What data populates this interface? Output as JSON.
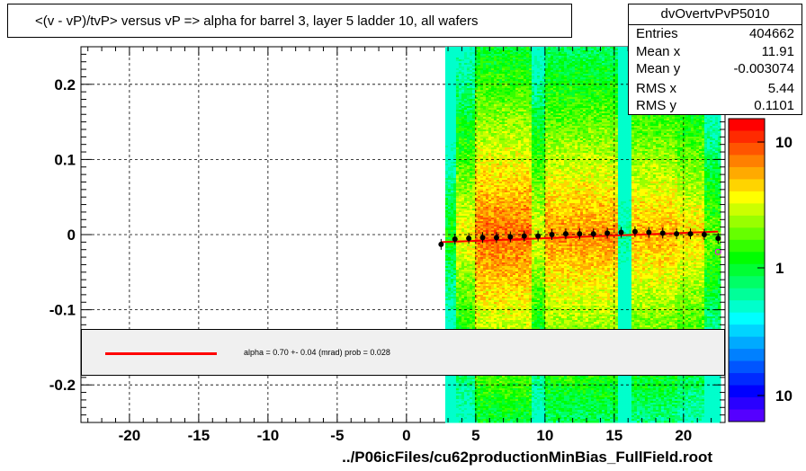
{
  "title": "<(v - vP)/tvP> versus   vP => alpha for barrel 3, layer 5 ladder 10, all wafers",
  "stats": {
    "name": "dvOvertvPvP5010",
    "rows": [
      {
        "label": "Entries",
        "value": "404662"
      },
      {
        "label": "Mean x",
        "value": "11.91"
      },
      {
        "label": "Mean y",
        "value": "-0.003074"
      },
      {
        "label": "RMS x",
        "value": "5.44"
      },
      {
        "label": "RMS y",
        "value": "0.1101"
      }
    ]
  },
  "legend": {
    "text": "alpha =    0.70 +-  0.04 (mrad) prob = 0.028",
    "line_color": "#ff0000"
  },
  "footer": "../P06icFiles/cu62productionMinBias_FullField.root",
  "colors": {
    "palette": [
      "#ff0000",
      "#ff2a00",
      "#ff5500",
      "#ff8000",
      "#ffaa00",
      "#ffd400",
      "#ffff00",
      "#ccff00",
      "#99ff00",
      "#66ff00",
      "#33ff00",
      "#00ff00",
      "#00ff33",
      "#00ff66",
      "#00ff99",
      "#00ffcc",
      "#00ffff",
      "#00d4ff",
      "#00aaff",
      "#0080ff",
      "#0055ff",
      "#002aff",
      "#0000ff",
      "#2a00ff",
      "#5500ff"
    ],
    "fit_line": "#ff0000",
    "profile_markers": "#000000",
    "open_marker": "#ff00ff"
  },
  "chart_data": {
    "type": "heatmap",
    "title": "<(v - vP)/tvP> versus   vP => alpha for barrel 3, layer 5 ladder 10, all wafers",
    "xlabel": "",
    "ylabel": "",
    "xlim": [
      -23.5,
      23
    ],
    "ylim": [
      -0.25,
      0.25
    ],
    "grid": true,
    "x_ticks": [
      -20,
      -15,
      -10,
      -5,
      0,
      5,
      10,
      15,
      20
    ],
    "x_tick_labels": [
      "-20",
      "-15",
      "-10",
      "-5",
      "0",
      "5",
      "10",
      "15",
      "20"
    ],
    "y_ticks": [
      0.2,
      0.1,
      0,
      -0.1,
      -0.2
    ],
    "y_tick_labels": [
      "0.2",
      "0.1",
      "0",
      "-0.1",
      "-0.2"
    ],
    "z_scale": "log",
    "z_tick_labels": [
      "10",
      "1",
      "10"
    ],
    "heatmap_x_range": [
      2.8,
      22.5
    ],
    "profile": {
      "x": [
        2.5,
        3.5,
        4.5,
        5.5,
        6.5,
        7.5,
        8.5,
        9.5,
        10.5,
        11.5,
        12.5,
        13.5,
        14.5,
        15.5,
        16.5,
        17.5,
        18.5,
        19.5,
        20.5,
        21.5,
        22.5
      ],
      "y": [
        -0.013,
        -0.006,
        -0.005,
        -0.004,
        -0.004,
        -0.003,
        -0.002,
        -0.002,
        0.0,
        0.001,
        0.001,
        0.001,
        0.002,
        0.003,
        0.004,
        0.003,
        0.002,
        0.001,
        0.001,
        0.0,
        -0.005
      ]
    },
    "fit": {
      "x": [
        2.5,
        22.5
      ],
      "y": [
        -0.01,
        0.004
      ]
    }
  }
}
